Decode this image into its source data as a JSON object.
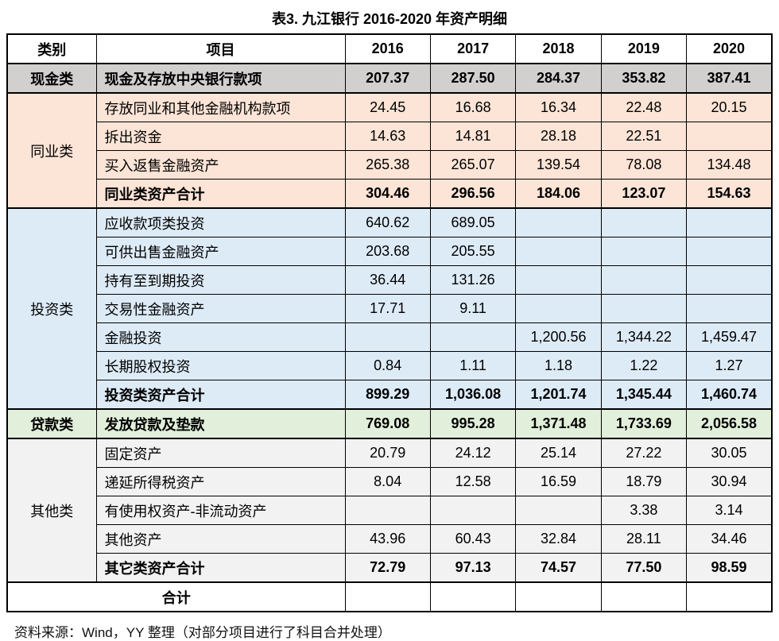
{
  "title": "表3. 九江银行 2016-2020 年资产明细",
  "columns": {
    "category": "类别",
    "item": "项目",
    "years": [
      "2016",
      "2017",
      "2018",
      "2019",
      "2020"
    ]
  },
  "colors": {
    "cash_bg": "#d2cfcf",
    "interbank_bg": "#fce4d6",
    "investment_bg": "#ddebf7",
    "loan_bg": "#e2efda",
    "other_bg": "#f2f2f2",
    "header_bg": "#ffffff",
    "border": "#000000"
  },
  "sections": [
    {
      "category": "现金类",
      "category_bold": true,
      "color": "#d2cfcf",
      "rows": [
        {
          "item": "现金及存放中央银行款项",
          "bold": true,
          "values": [
            "207.37",
            "287.50",
            "284.37",
            "353.82",
            "387.41"
          ]
        }
      ]
    },
    {
      "category": "同业类",
      "category_bold": false,
      "color": "#fce4d6",
      "rows": [
        {
          "item": "存放同业和其他金融机构款项",
          "bold": false,
          "values": [
            "24.45",
            "16.68",
            "16.34",
            "22.48",
            "20.15"
          ]
        },
        {
          "item": "拆出资金",
          "bold": false,
          "values": [
            "14.63",
            "14.81",
            "28.18",
            "22.51",
            ""
          ]
        },
        {
          "item": "买入返售金融资产",
          "bold": false,
          "values": [
            "265.38",
            "265.07",
            "139.54",
            "78.08",
            "134.48"
          ]
        },
        {
          "item": "同业类资产合计",
          "bold": true,
          "values": [
            "304.46",
            "296.56",
            "184.06",
            "123.07",
            "154.63"
          ]
        }
      ]
    },
    {
      "category": "投资类",
      "category_bold": false,
      "color": "#ddebf7",
      "rows": [
        {
          "item": "应收款项类投资",
          "bold": false,
          "values": [
            "640.62",
            "689.05",
            "",
            "",
            ""
          ]
        },
        {
          "item": "可供出售金融资产",
          "bold": false,
          "values": [
            "203.68",
            "205.55",
            "",
            "",
            ""
          ]
        },
        {
          "item": "持有至到期投资",
          "bold": false,
          "values": [
            "36.44",
            "131.26",
            "",
            "",
            ""
          ]
        },
        {
          "item": "交易性金融资产",
          "bold": false,
          "values": [
            "17.71",
            "9.11",
            "",
            "",
            ""
          ]
        },
        {
          "item": "金融投资",
          "bold": false,
          "values": [
            "",
            "",
            "1,200.56",
            "1,344.22",
            "1,459.47"
          ]
        },
        {
          "item": "长期股权投资",
          "bold": false,
          "values": [
            "0.84",
            "1.11",
            "1.18",
            "1.22",
            "1.27"
          ]
        },
        {
          "item": "投资类资产合计",
          "bold": true,
          "values": [
            "899.29",
            "1,036.08",
            "1,201.74",
            "1,345.44",
            "1,460.74"
          ]
        }
      ]
    },
    {
      "category": "贷款类",
      "category_bold": true,
      "color": "#e2efda",
      "rows": [
        {
          "item": "发放贷款及垫款",
          "bold": true,
          "values": [
            "769.08",
            "995.28",
            "1,371.48",
            "1,733.69",
            "2,056.58"
          ]
        }
      ]
    },
    {
      "category": "其他类",
      "category_bold": false,
      "color": "#f2f2f2",
      "rows": [
        {
          "item": "固定资产",
          "bold": false,
          "values": [
            "20.79",
            "24.12",
            "25.14",
            "27.22",
            "30.05"
          ]
        },
        {
          "item": "递延所得税资产",
          "bold": false,
          "values": [
            "8.04",
            "12.58",
            "16.59",
            "18.79",
            "30.94"
          ]
        },
        {
          "item": "有使用权资产-非流动资产",
          "bold": false,
          "values": [
            "",
            "",
            "",
            "3.38",
            "3.14"
          ]
        },
        {
          "item": "其他资产",
          "bold": false,
          "values": [
            "43.96",
            "60.43",
            "32.84",
            "28.11",
            "34.46"
          ]
        },
        {
          "item": "其它类资产合计",
          "bold": true,
          "values": [
            "72.79",
            "97.13",
            "74.57",
            "77.50",
            "98.59"
          ]
        }
      ]
    }
  ],
  "total_row": {
    "label": "合计",
    "values": [
      "",
      "",
      "",
      "",
      ""
    ]
  },
  "source_note": "资料来源：Wind，YY 整理（对部分项目进行了科目合并处理）"
}
